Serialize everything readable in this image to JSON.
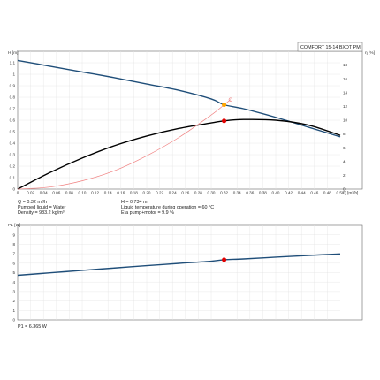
{
  "chart_data": [
    {
      "type": "line",
      "title": "COMFORT 15-14 BXDT PM",
      "xlabel": "Q [m³/h]",
      "ylabel": "H [m]",
      "ylabel_right": "η [%]",
      "xlim": [
        0,
        0.5
      ],
      "ylim": [
        0,
        1.2
      ],
      "ylim_right": [
        0,
        20
      ],
      "grid": true,
      "x_ticks": [
        "0",
        "0.02",
        "0.04",
        "0.06",
        "0.08",
        "0.10",
        "0.12",
        "0.14",
        "0.16",
        "0.18",
        "0.20",
        "0.22",
        "0.24",
        "0.26",
        "0.28",
        "0.30",
        "0.32",
        "0.34",
        "0.36",
        "0.38",
        "0.40",
        "0.42",
        "0.44",
        "0.46",
        "0.48",
        "0.50"
      ],
      "y_ticks": [
        "0",
        "0.1",
        "0.2",
        "0.3",
        "0.4",
        "0.5",
        "0.6",
        "0.7",
        "0.8",
        "0.9",
        "1",
        "1.1"
      ],
      "y_ticks_right": [
        "0",
        "2",
        "4",
        "6",
        "8",
        "10",
        "12",
        "14",
        "16",
        "18"
      ],
      "series": [
        {
          "axis": "left",
          "color": "#1f4e79",
          "x": [
            0,
            0.05,
            0.1,
            0.15,
            0.2,
            0.25,
            0.3,
            0.32,
            0.35,
            0.4,
            0.45,
            0.5
          ],
          "y": [
            1.12,
            1.07,
            1.02,
            0.97,
            0.915,
            0.86,
            0.785,
            0.734,
            0.7,
            0.625,
            0.54,
            0.455
          ]
        },
        {
          "axis": "right",
          "color": "#000000",
          "x": [
            0,
            0.05,
            0.1,
            0.15,
            0.2,
            0.25,
            0.3,
            0.32,
            0.35,
            0.4,
            0.45,
            0.5
          ],
          "y": [
            0,
            2.4,
            4.5,
            6.3,
            7.7,
            8.8,
            9.6,
            9.9,
            10.1,
            10.0,
            9.3,
            7.8
          ]
        },
        {
          "axis": "left",
          "color": "#f08080",
          "x": [
            0,
            0.05,
            0.1,
            0.15,
            0.2,
            0.25,
            0.3,
            0.32,
            0.33
          ],
          "y": [
            0,
            0.018,
            0.072,
            0.16,
            0.29,
            0.45,
            0.645,
            0.734,
            0.78
          ]
        }
      ],
      "markers": [
        {
          "axis": "left",
          "x": 0.32,
          "y": 0.734,
          "color": "#ffa500"
        },
        {
          "axis": "right",
          "x": 0.32,
          "y": 9.9,
          "color": "#e00000"
        },
        {
          "axis": "left",
          "x": 0.33,
          "y": 0.78,
          "color": "#f08080",
          "hollow": true
        }
      ]
    },
    {
      "type": "line",
      "xlabel": "",
      "ylabel": "P1 [W]",
      "xlim": [
        0,
        0.5
      ],
      "ylim": [
        0,
        10
      ],
      "grid": true,
      "y_ticks": [
        "0",
        "1",
        "2",
        "3",
        "4",
        "5",
        "6",
        "7",
        "8",
        "9"
      ],
      "series": [
        {
          "axis": "left",
          "color": "#1f4e79",
          "x": [
            0,
            0.05,
            0.1,
            0.15,
            0.2,
            0.25,
            0.3,
            0.32,
            0.35,
            0.4,
            0.45,
            0.5
          ],
          "y": [
            4.72,
            4.98,
            5.24,
            5.49,
            5.74,
            5.98,
            6.21,
            6.365,
            6.45,
            6.64,
            6.82,
            6.98
          ]
        }
      ],
      "markers": [
        {
          "axis": "left",
          "x": 0.32,
          "y": 6.365,
          "color": "#e00000"
        }
      ]
    }
  ],
  "info_left": [
    "Q = 0.32 m³/h",
    "Pumped liquid = Water",
    "Density = 983.2 kg/m³"
  ],
  "info_right": [
    "H = 0.734 m",
    "Liquid temperature during operation = 60 °C",
    "Eta pump+motor = 9.9 %"
  ],
  "p1_readout": "P1 = 6.365 W"
}
